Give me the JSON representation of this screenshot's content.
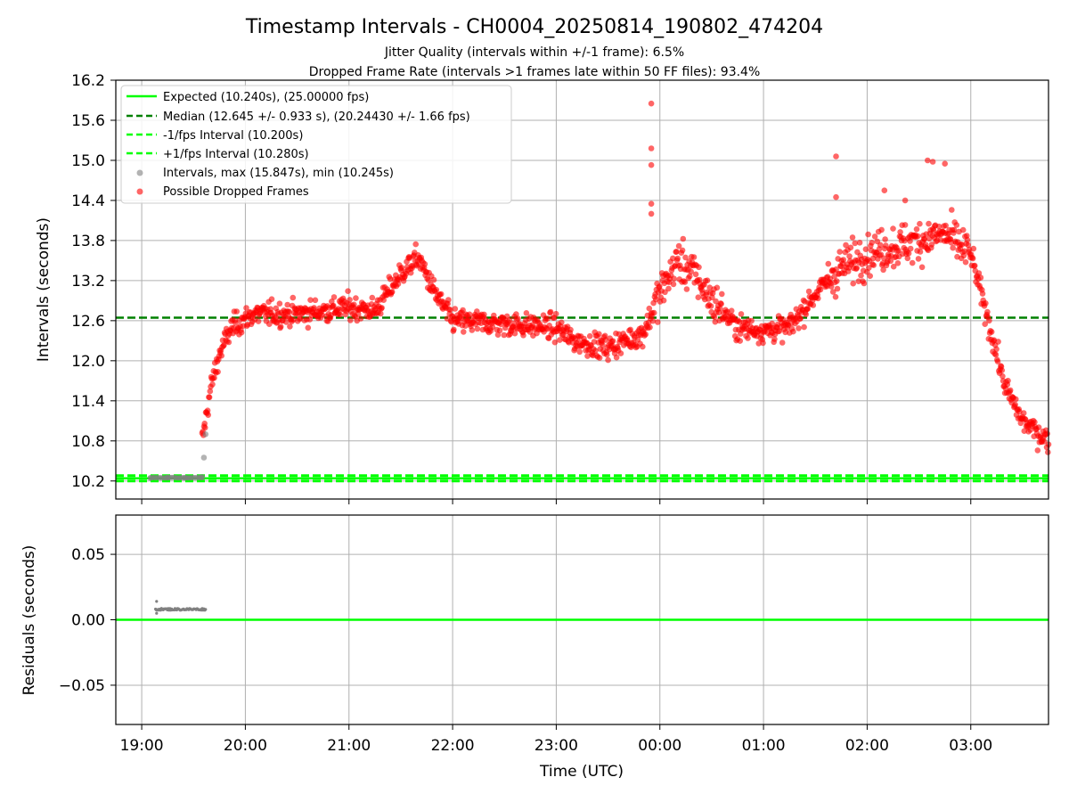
{
  "figure": {
    "title": "Timestamp Intervals - CH0004_20250814_190802_474204",
    "subtitle_1": "Jitter Quality (intervals within +/-1 frame): 6.5%",
    "subtitle_2": "Dropped Frame Rate (intervals >1 frames late within 50 FF files): 93.4%"
  },
  "colors": {
    "expected": "#00ff00",
    "median": "#008000",
    "fps_band": "#00ff00",
    "intervals": "#808080",
    "dropped": "#ff0000",
    "grid": "#b0b0b0"
  },
  "chart_data": [
    {
      "type": "scatter",
      "xlabel": "",
      "ylabel": "Intervals (seconds)",
      "x_range": [
        "18:45",
        "03:45"
      ],
      "ylim": [
        9.93,
        16.2
      ],
      "y_ticks": [
        "10.2",
        "10.8",
        "11.4",
        "12.0",
        "12.6",
        "13.2",
        "13.8",
        "14.4",
        "15.0",
        "15.6",
        "16.2"
      ],
      "grid": true,
      "legend_position": "upper-left",
      "legend": [
        {
          "label": "Expected (10.240s), (25.00000 fps)",
          "style": "solid-line",
          "color": "#00ff00"
        },
        {
          "label": "Median (12.645 +/- 0.933 s), (20.24430 +/- 1.66 fps)",
          "style": "dashed-line",
          "color": "#008000"
        },
        {
          "label": "-1/fps Interval (10.200s)",
          "style": "dashed-line",
          "color": "#00ff00"
        },
        {
          "label": "+1/fps Interval (10.280s)",
          "style": "dashed-line",
          "color": "#00ff00"
        },
        {
          "label": "Intervals, max (15.847s), min (10.245s)",
          "style": "gray-dot",
          "color": "#808080"
        },
        {
          "label": "Possible Dropped Frames",
          "style": "red-dot",
          "color": "#ff0000"
        }
      ],
      "reference_lines": {
        "expected": 10.24,
        "median": 12.645,
        "minus_one_fps": 10.2,
        "plus_one_fps": 10.28
      },
      "series": [
        {
          "name": "Possible Dropped Frames",
          "note_trend_points": [
            [
              "19:35",
              10.8
            ],
            [
              "19:40",
              11.6
            ],
            [
              "19:45",
              12.1
            ],
            [
              "19:52",
              12.5
            ],
            [
              "20:05",
              12.7
            ],
            [
              "20:30",
              12.7
            ],
            [
              "21:00",
              12.8
            ],
            [
              "21:15",
              12.75
            ],
            [
              "21:30",
              13.3
            ],
            [
              "21:40",
              13.55
            ],
            [
              "21:50",
              13.0
            ],
            [
              "22:00",
              12.6
            ],
            [
              "22:30",
              12.55
            ],
            [
              "23:00",
              12.5
            ],
            [
              "23:10",
              12.3
            ],
            [
              "23:30",
              12.2
            ],
            [
              "23:50",
              12.4
            ],
            [
              "23:58",
              12.9
            ],
            [
              "00:10",
              13.5
            ],
            [
              "00:20",
              13.3
            ],
            [
              "00:30",
              12.9
            ],
            [
              "00:45",
              12.5
            ],
            [
              "01:00",
              12.45
            ],
            [
              "01:15",
              12.5
            ],
            [
              "01:30",
              13.0
            ],
            [
              "01:45",
              13.4
            ],
            [
              "02:00",
              13.6
            ],
            [
              "02:30",
              13.8
            ],
            [
              "02:45",
              13.9
            ],
            [
              "03:00",
              13.6
            ],
            [
              "03:10",
              12.6
            ],
            [
              "03:20",
              11.6
            ],
            [
              "03:30",
              11.1
            ],
            [
              "03:45",
              10.8
            ]
          ],
          "outliers": [
            [
              "23:55",
              15.85
            ],
            [
              "23:55",
              15.18
            ],
            [
              "23:55",
              14.93
            ],
            [
              "23:55",
              14.35
            ],
            [
              "23:55",
              14.2
            ],
            [
              "01:42",
              15.06
            ],
            [
              "01:42",
              14.45
            ],
            [
              "02:35",
              15.0
            ],
            [
              "02:38",
              14.98
            ],
            [
              "02:45",
              14.95
            ],
            [
              "02:10",
              14.55
            ],
            [
              "02:22",
              14.4
            ]
          ]
        },
        {
          "name": "Intervals",
          "points": [
            [
              "19:05",
              10.245
            ],
            [
              "19:15",
              10.25
            ],
            [
              "19:25",
              10.25
            ],
            [
              "19:35",
              10.26
            ],
            [
              "19:36",
              10.55
            ],
            [
              "19:37",
              10.9
            ]
          ]
        }
      ]
    },
    {
      "type": "scatter",
      "xlabel": "Time (UTC)",
      "ylabel": "Residuals (seconds)",
      "x_range": [
        "18:45",
        "03:45"
      ],
      "ylim": [
        -0.08,
        0.08
      ],
      "y_ticks": [
        "0.05",
        "0.00",
        "−0.05"
      ],
      "x_ticks": [
        "19:00",
        "20:00",
        "21:00",
        "22:00",
        "23:00",
        "00:00",
        "01:00",
        "02:00",
        "03:00"
      ],
      "grid": true,
      "reference_lines": {
        "zero": 0.0
      },
      "series": [
        {
          "name": "Residuals",
          "x_span": [
            "19:08",
            "19:37"
          ],
          "value": 0.008,
          "spike": 0.014
        }
      ]
    }
  ]
}
